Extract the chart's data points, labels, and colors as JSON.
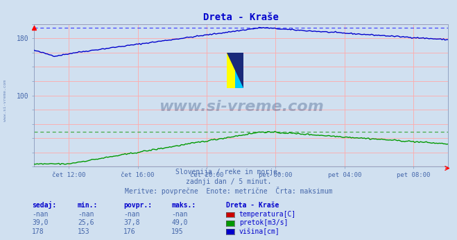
{
  "title": "Dreta - Kraše",
  "bg_color": "#d0e0f0",
  "plot_bg_color": "#d0e0f0",
  "grid_color": "#ffaaaa",
  "xlabel_ticks": [
    "čet 12:00",
    "čet 16:00",
    "čet 20:00",
    "pet 00:00",
    "pet 04:00",
    "pet 08:00"
  ],
  "ylim": [
    0,
    200
  ],
  "yticks_shown": [
    100,
    180
  ],
  "n_points": 288,
  "max_visina": 195,
  "max_pretok": 49,
  "line_color_visina": "#0000cc",
  "line_color_pretok": "#009900",
  "line_color_temp": "#cc0000",
  "dashed_color_visina": "#4444ff",
  "dashed_color_pretok": "#44aa44",
  "subtitle1": "Slovenija / reke in morje.",
  "subtitle2": "zadnji dan / 5 minut.",
  "subtitle3": "Meritve: povprečne  Enote: metrične  Črta: maksimum",
  "table_headers": [
    "sedaj:",
    "min.:",
    "povpr.:",
    "maks.:"
  ],
  "table_col5": "Dreta - Kraše",
  "row1": [
    "-nan",
    "-nan",
    "-nan",
    "-nan",
    "temperatura[C]"
  ],
  "row2": [
    "39,0",
    "25,6",
    "37,8",
    "49,0",
    "pretok[m3/s]"
  ],
  "row3": [
    "178",
    "153",
    "176",
    "195",
    "višina[cm]"
  ],
  "watermark": "www.si-vreme.com",
  "title_color": "#0000cc",
  "text_color": "#4466aa",
  "table_header_color": "#0000cc",
  "table_value_color": "#4466aa",
  "sidebar_text": "www.si-vreme.com"
}
